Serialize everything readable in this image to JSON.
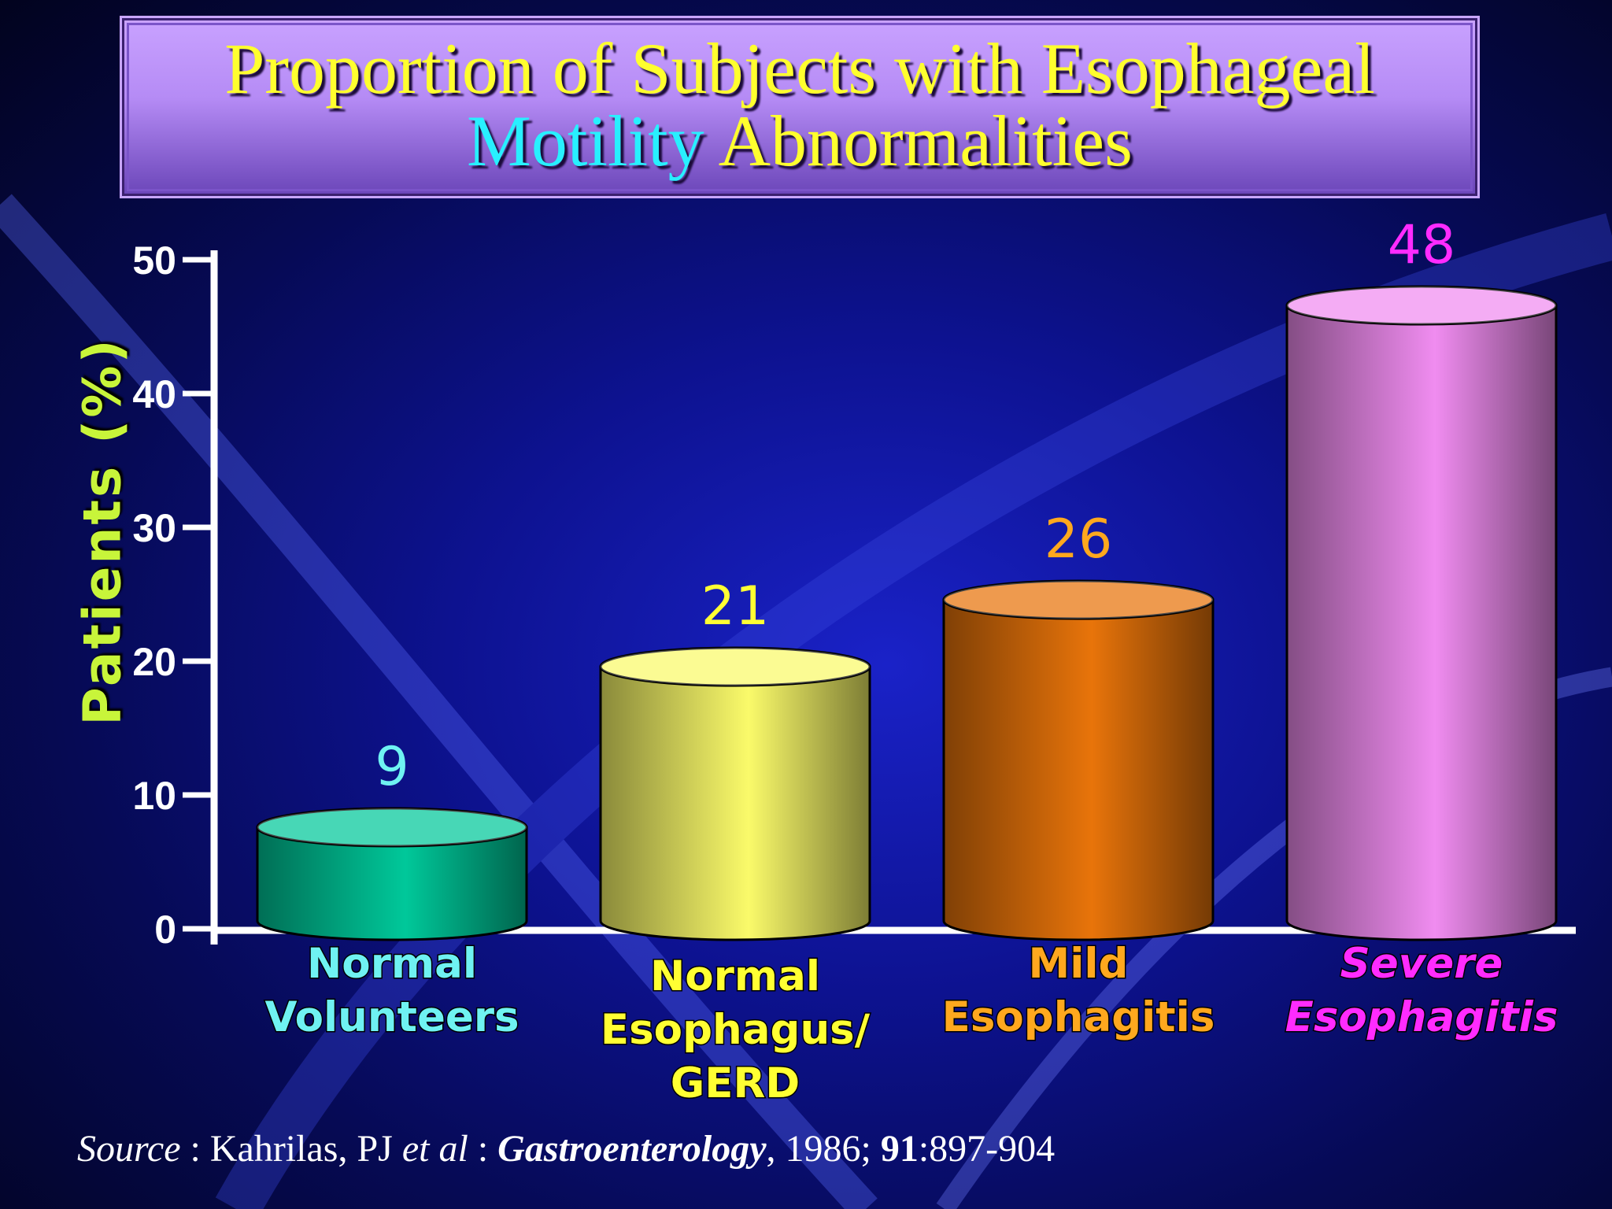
{
  "title": {
    "line1": "Proportion of Subjects with Esophageal",
    "line2_part1": "Motility",
    "line2_part2": " Abnormalities"
  },
  "source": {
    "label": "Source",
    "sep1": " : Kahrilas, PJ ",
    "etal": "et al",
    "sep2": " : ",
    "journal": "Gastroenterology",
    "year": ", 1986; ",
    "volume": "91",
    "pages": ":897-904"
  },
  "colors": {
    "title_yellow": "#ffff2e",
    "title_cyan": "#28f0ff",
    "ylabel": "#c8f53a",
    "axis": "#ffffff"
  },
  "chart_data": {
    "type": "bar",
    "ylabel": "Patients (%)",
    "ylim": [
      0,
      50
    ],
    "yticks": [
      0,
      10,
      20,
      30,
      40,
      50
    ],
    "grid": false,
    "bar_style": "3d-cylinder",
    "categories": [
      {
        "lines": [
          "Normal",
          "Volunteers"
        ],
        "italic": false
      },
      {
        "lines": [
          "Normal",
          "Esophagus/",
          "GERD"
        ],
        "italic": false
      },
      {
        "lines": [
          "Mild",
          "Esophagitis"
        ],
        "italic": false
      },
      {
        "lines": [
          "Severe",
          "Esophagitis"
        ],
        "italic": true
      }
    ],
    "values": [
      9,
      21,
      26,
      48
    ],
    "value_labels": [
      "9",
      "21",
      "26",
      "48"
    ],
    "bar_colors": [
      "#00c89a",
      "#fafa6a",
      "#e8740a",
      "#f08cf0"
    ],
    "label_colors": [
      "#6ff2f2",
      "#ffff33",
      "#ffa81e",
      "#ff2bff"
    ]
  }
}
